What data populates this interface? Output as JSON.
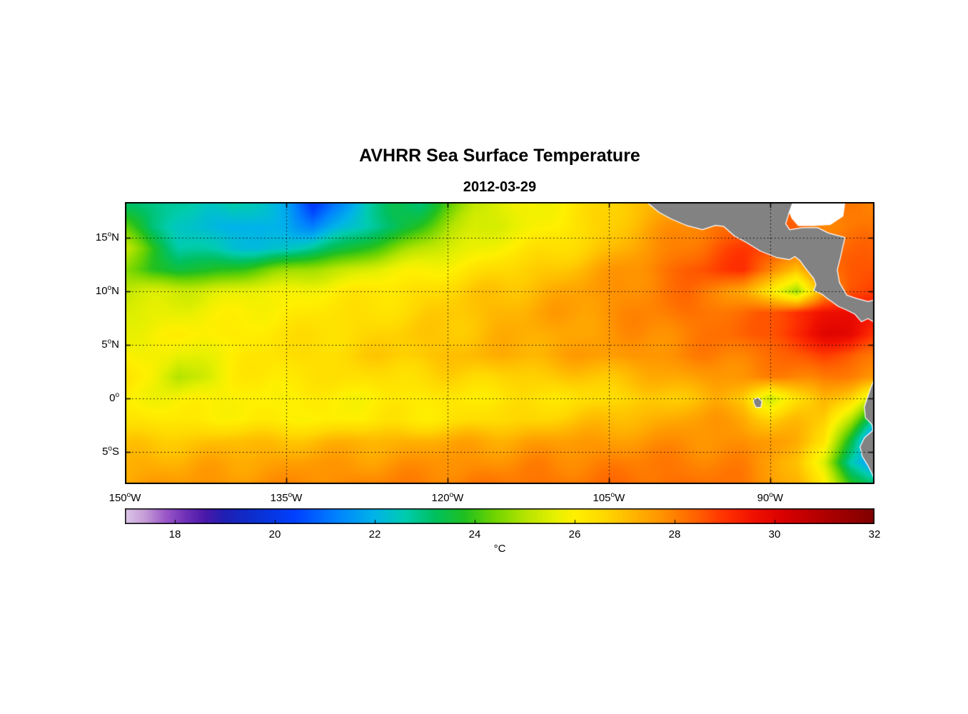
{
  "figure": {
    "title": "AVHRR Sea Surface Temperature",
    "subtitle": "2012-03-29",
    "background": "#ffffff",
    "land_color": "#828282",
    "coast_outline": "#ffffff",
    "nodata_color": "#ffffff",
    "grid_color": "#000000",
    "frame_color": "#000000"
  },
  "axes": {
    "sup_char": "o",
    "x_ticks": [
      {
        "num": "150",
        "suffix": "W",
        "lon": -150
      },
      {
        "num": "135",
        "suffix": "W",
        "lon": -135
      },
      {
        "num": "120",
        "suffix": "W",
        "lon": -120
      },
      {
        "num": "105",
        "suffix": "W",
        "lon": -105
      },
      {
        "num": "90",
        "suffix": "W",
        "lon": -90
      }
    ],
    "y_ticks": [
      {
        "num": "15",
        "suffix": "N",
        "lat": 15
      },
      {
        "num": "10",
        "suffix": "N",
        "lat": 10
      },
      {
        "num": "5",
        "suffix": "N",
        "lat": 5
      },
      {
        "num": "0",
        "suffix": "",
        "lat": 0
      },
      {
        "num": "5",
        "suffix": "S",
        "lat": -5
      }
    ]
  },
  "colorbar": {
    "label": "°C",
    "min": 17,
    "max": 32,
    "ticks": [
      18,
      20,
      22,
      24,
      26,
      28,
      30,
      32
    ]
  },
  "chart_data": {
    "type": "heatmap",
    "title": "AVHRR Sea Surface Temperature",
    "subtitle": "2012-03-29",
    "units": "°C",
    "lon_range": [
      -150,
      -80.3
    ],
    "lat_range": [
      -8,
      18.33
    ],
    "value_range": [
      17,
      32
    ],
    "grid_lon_start": -150,
    "grid_lon_step": 2.5,
    "grid_lat_start": 18,
    "grid_lat_step": -2,
    "sst_grid": [
      [
        23.2,
        23.0,
        22.6,
        22.4,
        22.8,
        22.3,
        21.8,
        20.2,
        21.4,
        22.6,
        23.2,
        23.2,
        24.2,
        25.2,
        25.5,
        25.8,
        26.0,
        26.3,
        26.6,
        27.0,
        27.3,
        27.6,
        28.0,
        28.1,
        28.1,
        28.1,
        28.1,
        28.1,
        28.1
      ],
      [
        24.2,
        23.0,
        22.5,
        22.2,
        22.0,
        21.8,
        22.0,
        21.3,
        22.0,
        22.6,
        23.2,
        24.0,
        24.8,
        25.3,
        25.6,
        25.8,
        26.0,
        26.3,
        26.8,
        27.2,
        27.6,
        27.9,
        28.2,
        28.4,
        28.5,
        28.3,
        28.1,
        28.1,
        28.1
      ],
      [
        25.2,
        24.0,
        22.8,
        22.5,
        22.3,
        22.2,
        22.4,
        22.8,
        23.3,
        24.0,
        24.5,
        25.0,
        25.4,
        25.7,
        26.0,
        26.2,
        26.4,
        26.7,
        27.0,
        27.4,
        27.8,
        28.2,
        28.6,
        28.8,
        28.8,
        28.6,
        28.4,
        28.3,
        28.3
      ],
      [
        24.8,
        23.8,
        23.5,
        23.6,
        24.0,
        24.3,
        24.6,
        24.9,
        25.2,
        25.5,
        25.7,
        25.9,
        26.1,
        26.3,
        26.5,
        26.7,
        26.9,
        27.2,
        27.5,
        27.8,
        28.2,
        28.5,
        28.8,
        29.0,
        28.2,
        26.9,
        28.1,
        28.6,
        28.6
      ],
      [
        25.2,
        25.3,
        25.4,
        25.5,
        25.6,
        25.7,
        25.8,
        26.0,
        26.1,
        26.2,
        26.3,
        26.5,
        26.6,
        26.8,
        27.0,
        27.1,
        27.3,
        27.5,
        27.7,
        27.9,
        28.1,
        28.2,
        28.0,
        27.4,
        26.2,
        24.6,
        27.5,
        28.8,
        28.8
      ],
      [
        25.5,
        25.6,
        25.7,
        25.8,
        25.9,
        26.0,
        26.1,
        26.2,
        26.3,
        26.4,
        26.5,
        26.6,
        26.8,
        27.0,
        27.2,
        27.3,
        27.5,
        27.6,
        27.8,
        27.9,
        28.0,
        28.2,
        28.3,
        28.2,
        28.5,
        29.2,
        29.6,
        29.8,
        29.4
      ],
      [
        25.8,
        25.9,
        26.0,
        26.0,
        26.1,
        26.2,
        26.3,
        26.4,
        26.5,
        26.6,
        26.7,
        26.8,
        26.9,
        27.0,
        27.2,
        27.3,
        27.4,
        27.5,
        27.6,
        27.8,
        27.9,
        28.0,
        28.2,
        28.4,
        28.6,
        29.3,
        29.8,
        29.9,
        29.0
      ],
      [
        26.0,
        25.8,
        25.5,
        25.8,
        26.0,
        26.2,
        26.4,
        26.5,
        26.6,
        26.7,
        26.8,
        26.9,
        27.0,
        27.1,
        27.2,
        27.3,
        27.4,
        27.5,
        27.6,
        27.7,
        27.8,
        27.9,
        28.0,
        28.1,
        28.2,
        28.5,
        28.8,
        28.6,
        28.2
      ],
      [
        26.2,
        26.0,
        25.0,
        25.4,
        26.0,
        26.2,
        26.3,
        26.3,
        26.4,
        26.4,
        26.5,
        26.5,
        26.6,
        26.6,
        26.7,
        26.7,
        26.8,
        26.9,
        27.0,
        27.1,
        27.3,
        27.5,
        27.7,
        27.8,
        27.9,
        28.0,
        28.2,
        28.0,
        27.6
      ],
      [
        26.0,
        25.9,
        25.8,
        25.9,
        26.0,
        26.0,
        26.0,
        26.0,
        26.0,
        26.0,
        26.1,
        26.1,
        26.2,
        26.2,
        26.2,
        26.3,
        26.3,
        26.4,
        26.5,
        26.6,
        26.8,
        27.0,
        27.2,
        26.8,
        25.2,
        26.5,
        27.2,
        26.5,
        25.0
      ],
      [
        26.3,
        26.2,
        26.1,
        26.1,
        26.1,
        26.0,
        26.0,
        26.0,
        26.1,
        26.1,
        26.2,
        26.2,
        26.3,
        26.4,
        26.5,
        26.6,
        26.8,
        26.9,
        27.0,
        27.2,
        27.3,
        27.5,
        27.6,
        27.5,
        26.8,
        27.0,
        26.8,
        25.0,
        22.5
      ],
      [
        26.8,
        26.8,
        26.9,
        26.9,
        27.0,
        27.0,
        27.0,
        27.1,
        27.1,
        27.2,
        27.2,
        27.3,
        27.3,
        27.4,
        27.4,
        27.5,
        27.5,
        27.6,
        27.6,
        27.7,
        27.7,
        27.8,
        27.8,
        27.8,
        27.6,
        27.2,
        26.5,
        23.5,
        20.0
      ],
      [
        27.2,
        27.3,
        27.3,
        27.4,
        27.4,
        27.5,
        27.5,
        27.6,
        27.6,
        27.6,
        27.7,
        27.7,
        27.8,
        27.8,
        27.8,
        27.9,
        27.9,
        28.0,
        28.0,
        28.0,
        28.1,
        28.1,
        28.0,
        27.9,
        27.6,
        27.0,
        25.5,
        22.5,
        21.0
      ],
      [
        27.5,
        27.6,
        27.6,
        27.7,
        27.7,
        27.8,
        27.8,
        27.9,
        27.9,
        28.0,
        28.0,
        28.0,
        28.1,
        28.1,
        28.1,
        28.2,
        28.2,
        28.2,
        28.2,
        28.3,
        28.3,
        28.2,
        28.2,
        28.1,
        27.8,
        27.2,
        26.0,
        24.0,
        23.0
      ]
    ],
    "colormap_stops": [
      [
        17.0,
        "#dcc7e8"
      ],
      [
        17.4,
        "#c49bd6"
      ],
      [
        17.8,
        "#9b59c8"
      ],
      [
        18.2,
        "#7031b8"
      ],
      [
        18.6,
        "#4a18a8"
      ],
      [
        19.0,
        "#1f1fb4"
      ],
      [
        19.6,
        "#0b2fd0"
      ],
      [
        20.4,
        "#0040ff"
      ],
      [
        21.2,
        "#0080ff"
      ],
      [
        22.0,
        "#00b4e8"
      ],
      [
        22.6,
        "#00ccb0"
      ],
      [
        23.2,
        "#00c060"
      ],
      [
        23.8,
        "#20c020"
      ],
      [
        24.4,
        "#70d400"
      ],
      [
        25.0,
        "#b4e400"
      ],
      [
        25.6,
        "#e6f000"
      ],
      [
        26.0,
        "#fff000"
      ],
      [
        26.6,
        "#ffd800"
      ],
      [
        27.2,
        "#ffb400"
      ],
      [
        27.8,
        "#ff9000"
      ],
      [
        28.4,
        "#ff6400"
      ],
      [
        29.0,
        "#ff3200"
      ],
      [
        29.6,
        "#f01000"
      ],
      [
        30.2,
        "#d80000"
      ],
      [
        31.0,
        "#b00000"
      ],
      [
        32.0,
        "#7f0000"
      ]
    ],
    "land_polygons": [
      {
        "name": "central-america",
        "points": [
          [
            -101.5,
            18.4
          ],
          [
            -100.3,
            17.4
          ],
          [
            -99.2,
            16.8
          ],
          [
            -97.8,
            16.2
          ],
          [
            -96.3,
            15.8
          ],
          [
            -95.1,
            16.2
          ],
          [
            -94.3,
            16.1
          ],
          [
            -93.3,
            15.2
          ],
          [
            -92.2,
            14.6
          ],
          [
            -90.9,
            13.8
          ],
          [
            -89.4,
            13.2
          ],
          [
            -88.2,
            13.0
          ],
          [
            -87.7,
            13.3
          ],
          [
            -87.2,
            12.9
          ],
          [
            -86.7,
            12.2
          ],
          [
            -85.9,
            11.2
          ],
          [
            -85.7,
            10.6
          ],
          [
            -85.9,
            10.1
          ],
          [
            -85.2,
            9.8
          ],
          [
            -84.7,
            9.4
          ],
          [
            -83.6,
            8.6
          ],
          [
            -82.9,
            8.3
          ],
          [
            -82.1,
            7.9
          ],
          [
            -81.5,
            7.2
          ],
          [
            -80.9,
            7.5
          ],
          [
            -80.4,
            7.2
          ],
          [
            -80.1,
            7.6
          ],
          [
            -80.1,
            9.2
          ],
          [
            -80.9,
            9.0
          ],
          [
            -82.0,
            9.3
          ],
          [
            -82.9,
            9.6
          ],
          [
            -83.6,
            10.8
          ],
          [
            -83.8,
            12.0
          ],
          [
            -83.5,
            13.2
          ],
          [
            -83.1,
            15.0
          ],
          [
            -84.6,
            15.4
          ],
          [
            -85.6,
            15.9
          ],
          [
            -87.0,
            15.9
          ],
          [
            -88.2,
            15.7
          ],
          [
            -88.6,
            16.3
          ],
          [
            -88.3,
            17.3
          ],
          [
            -87.9,
            18.4
          ]
        ]
      },
      {
        "name": "south-america",
        "points": [
          [
            -80.24,
            1.9
          ],
          [
            -80.6,
            1.0
          ],
          [
            -80.9,
            0.1
          ],
          [
            -81.2,
            -0.8
          ],
          [
            -81.1,
            -1.8
          ],
          [
            -80.5,
            -2.4
          ],
          [
            -80.4,
            -3.0
          ],
          [
            -81.2,
            -3.7
          ],
          [
            -81.6,
            -4.5
          ],
          [
            -81.4,
            -5.4
          ],
          [
            -80.9,
            -6.2
          ],
          [
            -80.4,
            -7.2
          ],
          [
            -80.24,
            -8.2
          ]
        ]
      },
      {
        "name": "galapagos-island",
        "points": [
          [
            -91.5,
            -0.1
          ],
          [
            -91.1,
            0.0
          ],
          [
            -90.8,
            -0.3
          ],
          [
            -90.9,
            -0.8
          ],
          [
            -91.3,
            -0.8
          ],
          [
            -91.5,
            -0.4
          ]
        ]
      }
    ],
    "nodata_polygons": [
      {
        "name": "caribbean-nodata",
        "points": [
          [
            -88.2,
            18.4
          ],
          [
            -83.0,
            18.4
          ],
          [
            -83.2,
            17.0
          ],
          [
            -84.4,
            16.2
          ],
          [
            -86.0,
            16.1
          ],
          [
            -87.4,
            16.1
          ],
          [
            -88.0,
            16.8
          ],
          [
            -88.3,
            17.5
          ]
        ]
      }
    ]
  }
}
